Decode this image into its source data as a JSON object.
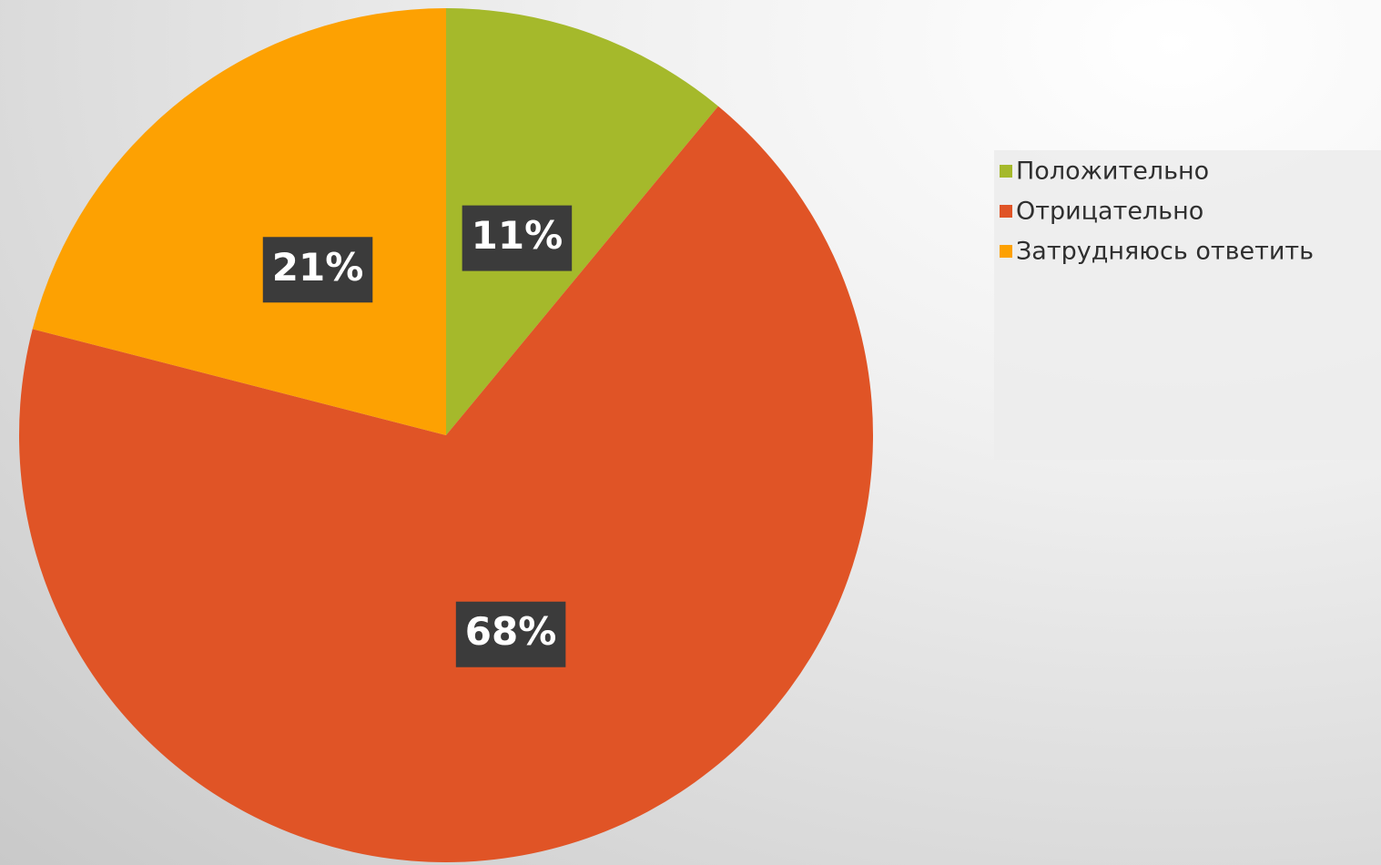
{
  "chart_data": {
    "type": "pie",
    "categories": [
      "Положительно",
      "Отрицательно",
      "Затрудняюсь ответить"
    ],
    "values": [
      11,
      68,
      21
    ],
    "value_labels": [
      "11%",
      "68%",
      "21%"
    ],
    "colors": [
      "#a5b92b",
      "#e05426",
      "#fda102"
    ],
    "legend": "right"
  }
}
